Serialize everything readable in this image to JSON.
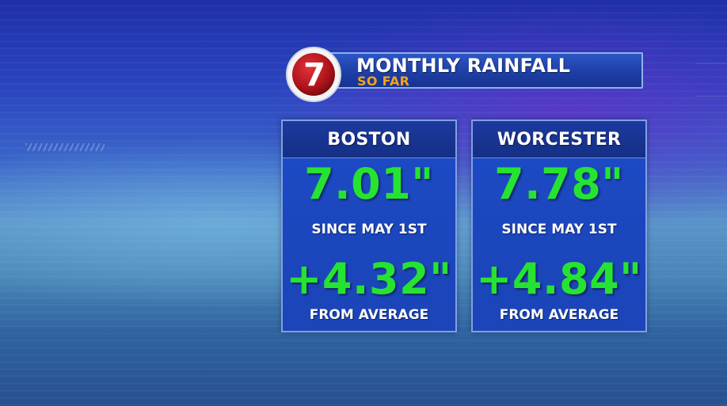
{
  "header": {
    "logo_text": "7",
    "title": "MONTHLY RAINFALL",
    "subtitle": "SO FAR"
  },
  "colors": {
    "accent_green": "#27e331",
    "subtitle_orange": "#f2a21c",
    "logo_red": "#b0141b"
  },
  "cards": [
    {
      "city": "BOSTON",
      "total": "7.01\"",
      "total_caption": "SINCE MAY 1ST",
      "departure": "+4.32\"",
      "departure_caption": "FROM AVERAGE"
    },
    {
      "city": "WORCESTER",
      "total": "7.78\"",
      "total_caption": "SINCE MAY 1ST",
      "departure": "+4.84\"",
      "departure_caption": "FROM AVERAGE"
    }
  ]
}
